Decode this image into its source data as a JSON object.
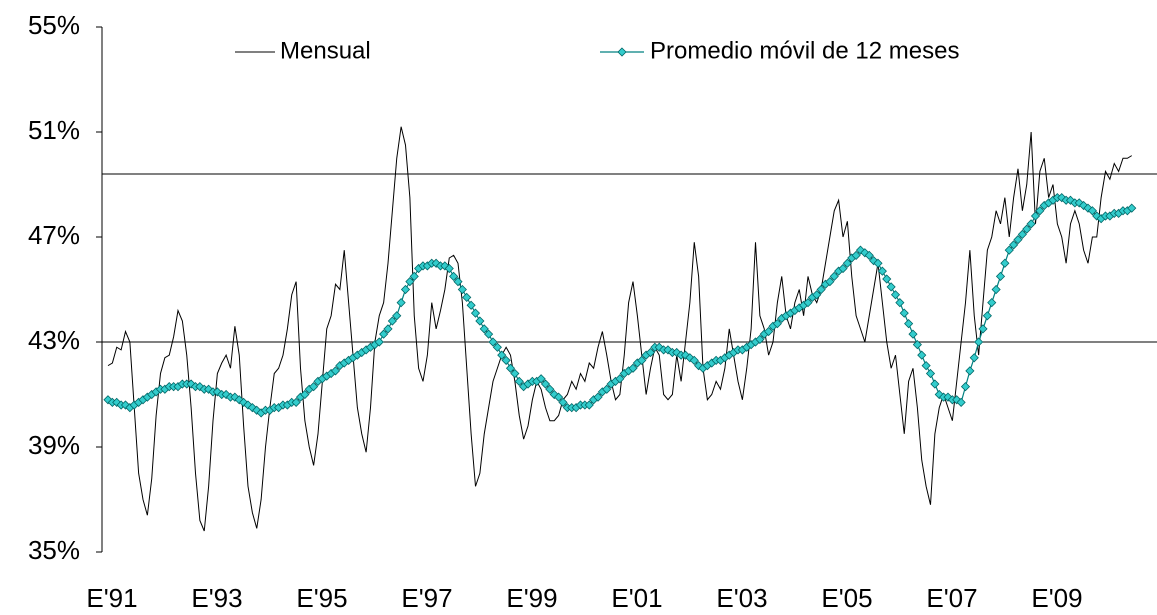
{
  "chart_data": {
    "type": "line",
    "categories": [
      "E'91",
      null,
      null,
      null,
      null,
      null,
      null,
      null,
      null,
      null,
      null,
      null,
      null,
      null,
      null,
      null,
      null,
      null,
      null,
      null,
      null,
      null,
      null,
      null,
      "E'93",
      null,
      null,
      null,
      null,
      null,
      null,
      null,
      null,
      null,
      null,
      null,
      null,
      null,
      null,
      null,
      null,
      null,
      null,
      null,
      null,
      null,
      null,
      null,
      "E'95",
      null,
      null,
      null,
      null,
      null,
      null,
      null,
      null,
      null,
      null,
      null,
      null,
      null,
      null,
      null,
      null,
      null,
      null,
      null,
      null,
      null,
      null,
      null,
      "E'97",
      null,
      null,
      null,
      null,
      null,
      null,
      null,
      null,
      null,
      null,
      null,
      null,
      null,
      null,
      null,
      null,
      null,
      null,
      null,
      null,
      null,
      null,
      null,
      "E'99",
      null,
      null,
      null,
      null,
      null,
      null,
      null,
      null,
      null,
      null,
      null,
      null,
      null,
      null,
      null,
      null,
      null,
      null,
      null,
      null,
      null,
      null,
      null,
      "E'01",
      null,
      null,
      null,
      null,
      null,
      null,
      null,
      null,
      null,
      null,
      null,
      null,
      null,
      null,
      null,
      null,
      null,
      null,
      null,
      null,
      null,
      null,
      null,
      "E'03",
      null,
      null,
      null,
      null,
      null,
      null,
      null,
      null,
      null,
      null,
      null,
      null,
      null,
      null,
      null,
      null,
      null,
      null,
      null,
      null,
      null,
      null,
      null,
      "E'05",
      null,
      null,
      null,
      null,
      null,
      null,
      null,
      null,
      null,
      null,
      null,
      null,
      null,
      null,
      null,
      null,
      null,
      null,
      null,
      null,
      null,
      null,
      null,
      "E'07",
      null,
      null,
      null,
      null,
      null,
      null,
      null,
      null,
      null,
      null,
      null,
      null,
      null,
      null,
      null,
      null,
      null,
      null,
      null,
      null,
      null,
      null,
      null,
      "E'09",
      null,
      null,
      null,
      null,
      null,
      null,
      null,
      null,
      null,
      null,
      null,
      null,
      null,
      null,
      null,
      null,
      null,
      null
    ],
    "series": [
      {
        "name": "Mensual",
        "color": "#000000",
        "values": [
          42.1,
          42.2,
          42.8,
          42.7,
          43.4,
          43.0,
          40.5,
          38.0,
          37.0,
          36.4,
          37.8,
          40.2,
          41.8,
          42.4,
          42.5,
          43.2,
          44.2,
          43.8,
          42.5,
          40.5,
          38.0,
          36.2,
          35.8,
          37.5,
          40.0,
          41.8,
          42.2,
          42.5,
          42.0,
          43.6,
          42.5,
          39.8,
          37.5,
          36.5,
          35.9,
          37.0,
          39.0,
          40.5,
          41.8,
          42.0,
          42.5,
          43.5,
          44.8,
          45.3,
          42.0,
          40.0,
          39.0,
          38.3,
          39.5,
          41.5,
          43.5,
          44.0,
          45.2,
          45.0,
          46.5,
          44.5,
          42.5,
          40.5,
          39.5,
          38.8,
          40.5,
          43.0,
          44.0,
          44.5,
          46.0,
          48.0,
          50.0,
          51.2,
          50.5,
          48.5,
          44.0,
          42.0,
          41.5,
          42.5,
          44.5,
          43.5,
          44.2,
          45.0,
          46.2,
          46.3,
          46.0,
          44.5,
          42.0,
          39.5,
          37.5,
          38.0,
          39.5,
          40.5,
          41.5,
          42.0,
          42.5,
          42.8,
          42.5,
          41.5,
          40.2,
          39.3,
          39.8,
          40.8,
          41.5,
          41.2,
          40.5,
          40.0,
          40.0,
          40.2,
          40.8,
          41.0,
          41.5,
          41.2,
          41.8,
          41.5,
          42.2,
          42.0,
          42.8,
          43.4,
          42.5,
          41.5,
          40.8,
          41.0,
          42.5,
          44.5,
          45.3,
          44.0,
          42.5,
          41.0,
          42.0,
          42.8,
          42.5,
          41.0,
          40.8,
          41.0,
          42.5,
          41.5,
          43.0,
          44.5,
          46.8,
          45.5,
          42.0,
          40.8,
          41.0,
          41.5,
          41.2,
          42.0,
          43.5,
          42.5,
          41.5,
          40.8,
          42.0,
          43.5,
          46.8,
          44.0,
          43.5,
          42.5,
          43.0,
          44.5,
          45.5,
          44.0,
          43.5,
          44.5,
          45.0,
          44.0,
          45.5,
          44.8,
          44.5,
          45.0,
          46.0,
          47.0,
          48.0,
          48.4,
          47.0,
          47.6,
          45.5,
          44.0,
          43.5,
          43.0,
          44.0,
          45.0,
          46.0,
          44.5,
          43.0,
          42.0,
          42.5,
          41.0,
          39.5,
          41.5,
          42.0,
          40.5,
          38.5,
          37.5,
          36.8,
          39.5,
          40.5,
          41.0,
          40.5,
          40.0,
          41.5,
          43.0,
          44.5,
          46.5,
          44.0,
          42.5,
          44.5,
          46.5,
          47.0,
          48.0,
          47.5,
          48.5,
          47.0,
          48.5,
          49.6,
          48.0,
          49.0,
          51.0,
          47.5,
          49.5,
          50.0,
          48.5,
          49.0,
          47.5,
          47.0,
          46.0,
          47.5,
          48.0,
          47.5,
          46.5,
          46.0,
          47.0,
          47.0,
          48.5,
          49.5,
          49.2,
          49.8,
          49.5,
          50.0,
          50.0,
          50.1
        ]
      },
      {
        "name": "Promedio móvil de 12 meses",
        "color": "#33cccc",
        "marker": "diamond",
        "values": [
          40.8,
          40.7,
          40.7,
          40.6,
          40.6,
          40.5,
          40.6,
          40.7,
          40.8,
          40.9,
          41.0,
          41.1,
          41.2,
          41.2,
          41.3,
          41.3,
          41.3,
          41.4,
          41.4,
          41.4,
          41.3,
          41.3,
          41.2,
          41.2,
          41.1,
          41.1,
          41.0,
          41.0,
          40.9,
          40.9,
          40.8,
          40.7,
          40.6,
          40.5,
          40.4,
          40.3,
          40.4,
          40.4,
          40.5,
          40.5,
          40.6,
          40.6,
          40.7,
          40.7,
          40.9,
          41.0,
          41.2,
          41.3,
          41.5,
          41.6,
          41.7,
          41.8,
          41.9,
          42.1,
          42.2,
          42.3,
          42.4,
          42.5,
          42.6,
          42.7,
          42.8,
          42.9,
          43.0,
          43.3,
          43.5,
          43.8,
          44.0,
          44.5,
          45.0,
          45.3,
          45.5,
          45.8,
          45.9,
          45.9,
          46.0,
          46.0,
          45.9,
          45.9,
          45.8,
          45.5,
          45.3,
          45.0,
          44.7,
          44.4,
          44.1,
          43.8,
          43.5,
          43.3,
          43.0,
          42.8,
          42.5,
          42.3,
          42.0,
          41.8,
          41.5,
          41.3,
          41.4,
          41.5,
          41.5,
          41.6,
          41.4,
          41.2,
          41.0,
          40.9,
          40.7,
          40.5,
          40.5,
          40.5,
          40.6,
          40.6,
          40.6,
          40.8,
          40.9,
          41.1,
          41.2,
          41.4,
          41.5,
          41.6,
          41.8,
          41.9,
          42.0,
          42.2,
          42.3,
          42.5,
          42.6,
          42.8,
          42.8,
          42.7,
          42.7,
          42.6,
          42.6,
          42.5,
          42.5,
          42.4,
          42.3,
          42.1,
          42.0,
          42.1,
          42.2,
          42.3,
          42.3,
          42.4,
          42.5,
          42.6,
          42.7,
          42.7,
          42.8,
          42.9,
          43.0,
          43.1,
          43.3,
          43.4,
          43.6,
          43.7,
          43.9,
          44.0,
          44.1,
          44.2,
          44.3,
          44.4,
          44.5,
          44.7,
          44.8,
          45.0,
          45.2,
          45.3,
          45.5,
          45.7,
          45.8,
          46.0,
          46.2,
          46.3,
          46.5,
          46.4,
          46.3,
          46.1,
          46.0,
          45.7,
          45.4,
          45.1,
          44.8,
          44.5,
          44.1,
          43.7,
          43.3,
          42.9,
          42.5,
          42.1,
          41.8,
          41.4,
          41.0,
          40.9,
          40.9,
          40.8,
          40.8,
          40.7,
          41.3,
          41.9,
          42.4,
          43.0,
          43.5,
          44.0,
          44.5,
          45.0,
          45.5,
          46.0,
          46.5,
          46.7,
          46.9,
          47.1,
          47.3,
          47.5,
          47.8,
          48.0,
          48.2,
          48.3,
          48.4,
          48.5,
          48.5,
          48.4,
          48.4,
          48.3,
          48.3,
          48.2,
          48.1,
          48.0,
          47.8,
          47.7,
          47.8,
          47.8,
          47.9,
          47.9,
          48.0,
          48.0,
          48.1
        ]
      }
    ],
    "ylim": [
      35,
      55
    ],
    "yticks": [
      {
        "value": 35,
        "label": "35%"
      },
      {
        "value": 39,
        "label": "39%"
      },
      {
        "value": 43,
        "label": "43%"
      },
      {
        "value": 47,
        "label": "47%"
      },
      {
        "value": 51,
        "label": "51%"
      },
      {
        "value": 55,
        "label": "55%"
      }
    ],
    "reference_lines": [
      43,
      49.4
    ],
    "legend": "top"
  }
}
